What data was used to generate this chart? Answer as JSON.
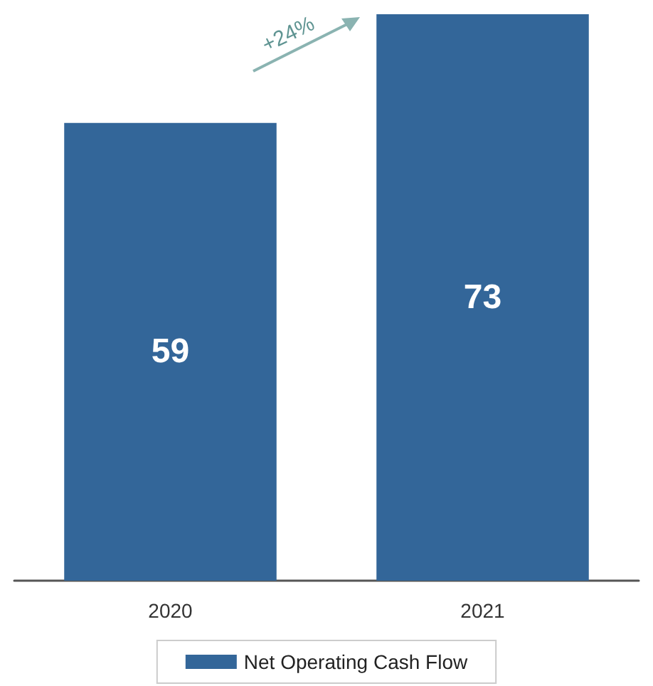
{
  "chart_data": {
    "type": "bar",
    "categories": [
      "2020",
      "2021"
    ],
    "series": [
      {
        "name": "Net Operating Cash Flow",
        "color": "#336699",
        "values": [
          59,
          73
        ]
      }
    ],
    "data_labels": true,
    "legend": "bottom",
    "annotations": [
      "+24%"
    ]
  }
}
